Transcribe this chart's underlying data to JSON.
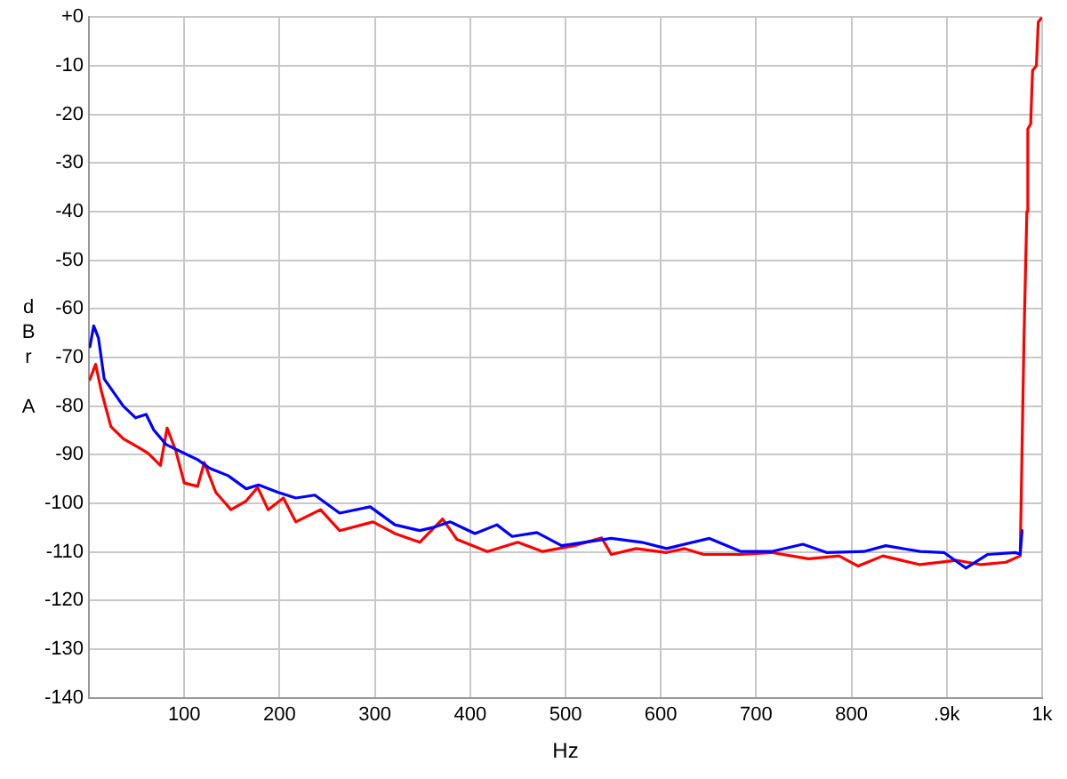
{
  "chart_data": {
    "type": "line",
    "xlabel": "Hz",
    "ylabel": "dBr A",
    "xlim": [
      0,
      1000
    ],
    "ylim": [
      -140,
      0
    ],
    "xticks": [
      100,
      200,
      300,
      400,
      500,
      600,
      700,
      800,
      {
        "value": 900,
        "label": ".9k"
      },
      {
        "value": 1000,
        "label": "1k"
      }
    ],
    "yticks": [
      {
        "value": 0,
        "label": "+0"
      },
      -10,
      -20,
      -30,
      -40,
      -50,
      -60,
      -70,
      -80,
      -90,
      -100,
      -110,
      -120,
      -130,
      -140
    ],
    "grid": true,
    "legend": false,
    "marker": "none",
    "line_style": "solid",
    "series": [
      {
        "color": "#0000ff",
        "x": [
          1,
          5,
          10,
          16,
          36,
          49,
          60,
          68,
          81,
          100,
          114,
          127,
          146,
          165,
          178,
          198,
          217,
          237,
          263,
          295,
          321,
          347,
          360,
          379,
          405,
          428,
          444,
          470,
          496,
          548,
          580,
          606,
          651,
          684,
          716,
          749,
          774,
          813,
          836,
          872,
          897,
          920,
          943,
          972,
          977,
          979
        ],
        "values": [
          -67.8,
          -63.5,
          -66,
          -74.4,
          -80,
          -82.4,
          -81.7,
          -84.9,
          -87.9,
          -89.7,
          -91,
          -92.8,
          -94.3,
          -97,
          -96.2,
          -97.7,
          -98.9,
          -98.3,
          -102,
          -100.7,
          -104.4,
          -105.6,
          -105,
          -103.8,
          -106.2,
          -104.4,
          -106.8,
          -106,
          -108.7,
          -107.2,
          -108,
          -109.3,
          -107.2,
          -109.9,
          -109.9,
          -108.4,
          -110.1,
          -109.9,
          -108.7,
          -109.9,
          -110.1,
          -113.3,
          -110.5,
          -110.1,
          -110.5,
          -105.6
        ]
      },
      {
        "color": "#ff0000",
        "x": [
          1,
          7,
          13,
          23,
          36,
          52,
          62,
          75,
          82,
          91,
          100,
          114,
          121,
          133,
          149,
          165,
          177,
          188,
          204,
          217,
          243,
          263,
          298,
          321,
          347,
          371,
          386,
          418,
          450,
          476,
          509,
          538,
          548,
          574,
          606,
          625,
          645,
          684,
          716,
          755,
          787,
          807,
          833,
          872,
          910,
          936,
          962,
          977,
          981,
          984,
          985,
          988,
          990,
          994,
          996,
          1000
        ],
        "values": [
          -74.5,
          -71.4,
          -76.9,
          -84.2,
          -86.7,
          -88.5,
          -89.7,
          -92.2,
          -84.5,
          -89.1,
          -95.8,
          -96.5,
          -91.6,
          -97.7,
          -101.3,
          -99.5,
          -96.7,
          -101.3,
          -98.9,
          -103.8,
          -101.3,
          -105.6,
          -103.8,
          -106.2,
          -108,
          -103.2,
          -107.4,
          -109.9,
          -108,
          -109.9,
          -108.7,
          -107.1,
          -110.5,
          -109.3,
          -110.1,
          -109.3,
          -110.5,
          -110.5,
          -110.1,
          -111.4,
          -110.8,
          -112.9,
          -110.8,
          -112.6,
          -111.7,
          -112.6,
          -112.1,
          -110.8,
          -66,
          -40,
          -23,
          -22,
          -11,
          -10,
          -1,
          0
        ]
      }
    ]
  }
}
